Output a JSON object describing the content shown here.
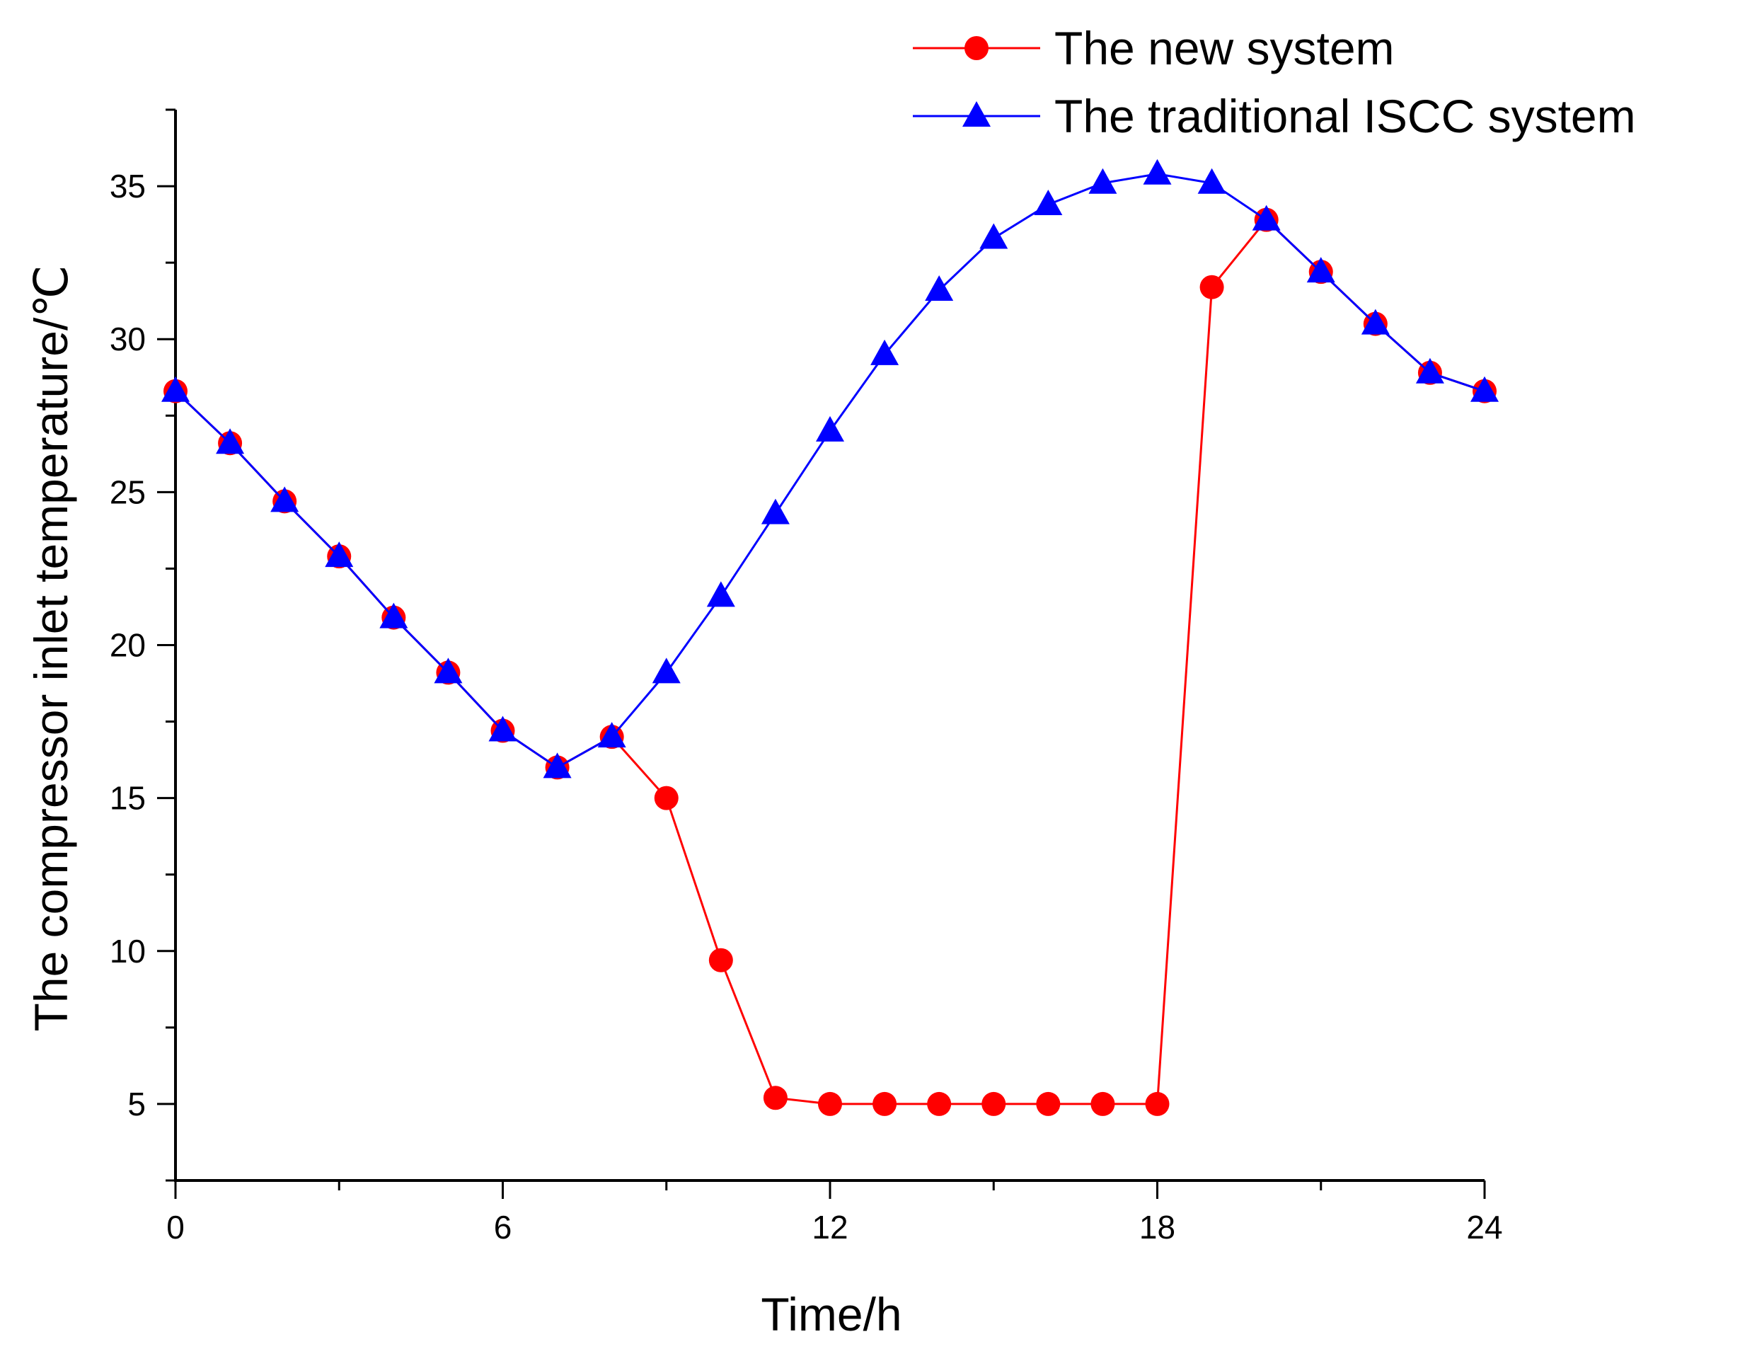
{
  "chart_data": {
    "type": "line",
    "title": "",
    "xlabel": "Time/h",
    "ylabel": "The compressor inlet temperature/℃",
    "xlim": [
      0,
      24
    ],
    "ylim": [
      2.5,
      37.5
    ],
    "xticks": [
      0,
      6,
      12,
      18,
      24
    ],
    "yticks": [
      5,
      10,
      15,
      20,
      25,
      30,
      35
    ],
    "x_minor_step": 3,
    "y_minor_step": 2.5,
    "grid": false,
    "legend_position": "top-right",
    "x": [
      0,
      1,
      2,
      3,
      4,
      5,
      6,
      7,
      8,
      9,
      10,
      11,
      12,
      13,
      14,
      15,
      16,
      17,
      18,
      19,
      20,
      21,
      22,
      23,
      24
    ],
    "series": [
      {
        "name": "The new system",
        "color": "#ff0000",
        "marker": "circle",
        "values": [
          28.3,
          26.6,
          24.7,
          22.9,
          20.9,
          19.1,
          17.2,
          16.0,
          17.0,
          15.0,
          9.7,
          5.2,
          5.0,
          5.0,
          5.0,
          5.0,
          5.0,
          5.0,
          5.0,
          31.7,
          33.9,
          32.2,
          30.5,
          28.9,
          28.3
        ]
      },
      {
        "name": "The traditional ISCC system",
        "color": "#0000ff",
        "marker": "triangle",
        "values": [
          28.3,
          26.6,
          24.7,
          22.9,
          20.9,
          19.1,
          17.2,
          16.0,
          17.0,
          19.1,
          21.6,
          24.3,
          27.0,
          29.5,
          31.6,
          33.3,
          34.4,
          35.1,
          35.4,
          35.1,
          33.9,
          32.2,
          30.5,
          28.9,
          28.3
        ]
      }
    ]
  }
}
